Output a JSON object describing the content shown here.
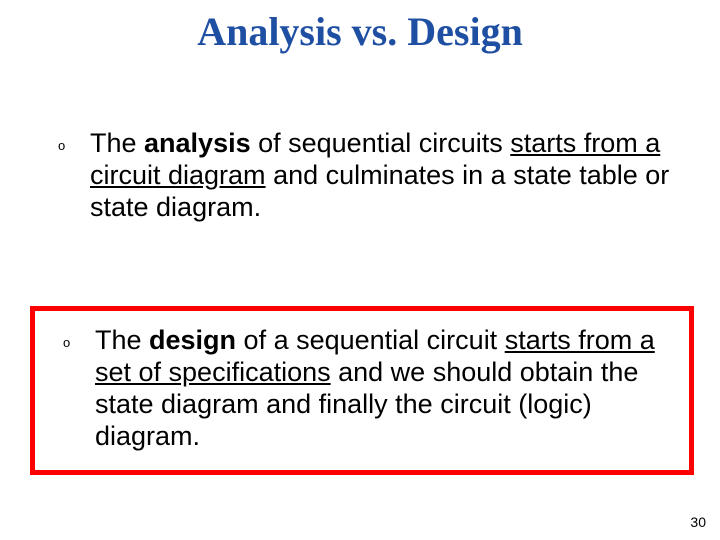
{
  "title": {
    "text": "Analysis vs. Design",
    "color": "#1f4fa3",
    "fontsize": 40
  },
  "bullets": {
    "marker": "o",
    "marker_fontsize": 13,
    "text_fontsize": 27,
    "text_color": "#000000",
    "gap_after_first": 44
  },
  "bullet1": {
    "pre": "The ",
    "bold": "analysis",
    "mid1": " of sequential circuits ",
    "underline": "starts from a circuit diagram",
    "post": " and culminates in a state table or state diagram."
  },
  "bullet2": {
    "pre": "The ",
    "bold": "design",
    "mid1": " of a sequential circuit ",
    "underline": "starts from a set of specifications",
    "post": " and we should obtain the state diagram and finally the circuit (logic) diagram."
  },
  "highlight_box": {
    "border_color": "#ff0000",
    "border_width": 5,
    "background": "#ffffff"
  },
  "page_number": {
    "value": "30",
    "fontsize": 14,
    "color": "#000000"
  }
}
